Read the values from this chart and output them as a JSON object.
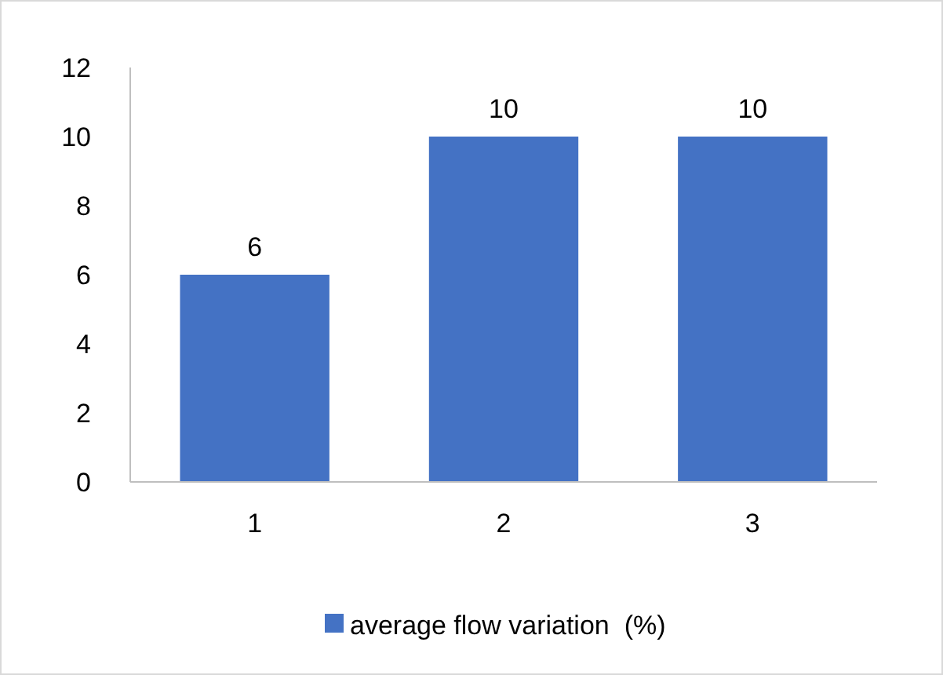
{
  "chart_data": {
    "type": "bar",
    "categories": [
      "1",
      "2",
      "3"
    ],
    "series": [
      {
        "name": "average flow variation  (%)",
        "color": "#4472c4",
        "values": [
          6,
          10,
          10
        ]
      }
    ],
    "ylim": [
      0,
      12
    ],
    "yticks": [
      0,
      2,
      4,
      6,
      8,
      10,
      12
    ],
    "grid": false,
    "legend": "bottom",
    "data_labels": true
  }
}
